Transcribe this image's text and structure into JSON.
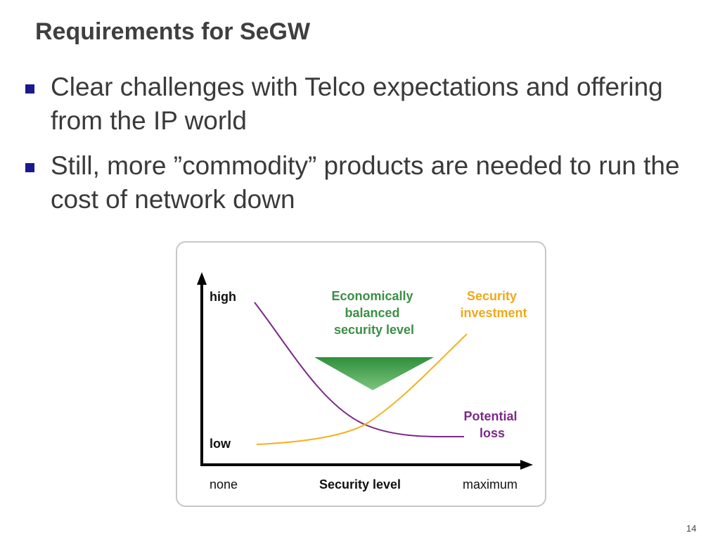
{
  "slide": {
    "title": "Requirements for SeGW",
    "bullets": [
      "Clear challenges with Telco expectations and offering from the IP world",
      "Still, more ”commodity” products are needed to run the cost of network down"
    ],
    "page_number": "14"
  },
  "diagram": {
    "y_axis": {
      "high_label": "high",
      "low_label": "low"
    },
    "x_axis": {
      "min_label": "none",
      "title": "Security level",
      "max_label": "maximum"
    },
    "balance_label": [
      "Economically",
      "balanced",
      "security level"
    ],
    "investment_label": [
      "Security",
      "investment"
    ],
    "loss_label": [
      "Potential",
      "loss"
    ],
    "colors": {
      "axis": "#000000",
      "investment": "#f5b01e",
      "loss": "#7a2a86",
      "balance": "#2e8b3a",
      "frame": "#c7c7c7"
    }
  }
}
